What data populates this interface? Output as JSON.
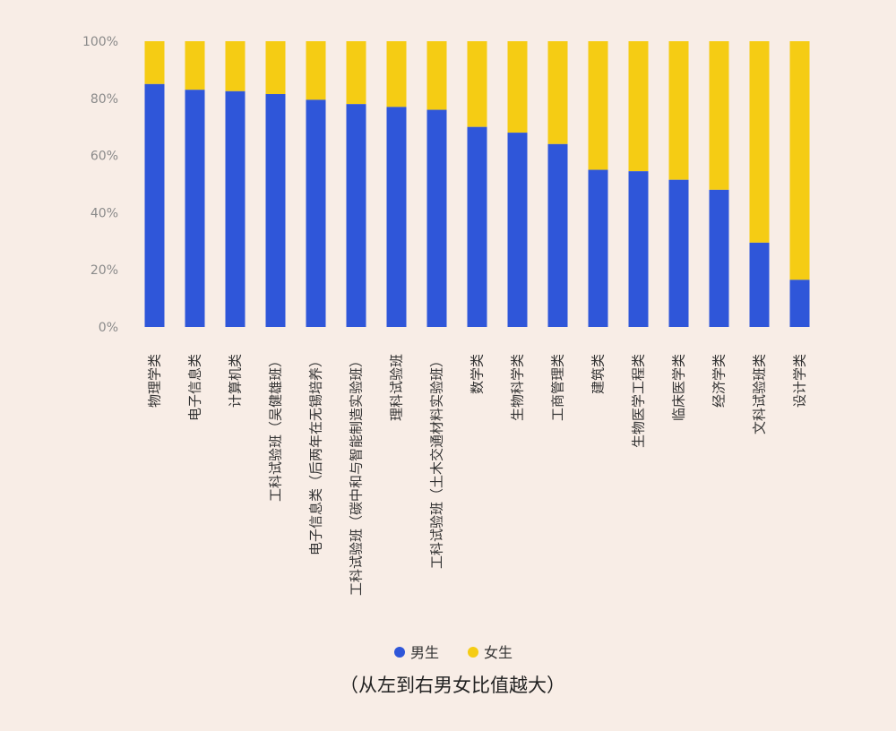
{
  "chart_data": {
    "type": "bar",
    "stacked": true,
    "percent": true,
    "categories": [
      "物理学类",
      "电子信息类",
      "计算机类",
      "工科试验班（吴健雄班）",
      "电子信息类（后两年在无锡培养）",
      "工科试验班（碳中和与智能制造实验班）",
      "理科试验班",
      "工科试验班（土木交通材料实验班）",
      "数学类",
      "生物科学类",
      "工商管理类",
      "建筑类",
      "生物医学工程类",
      "临床医学类",
      "经济学类",
      "文科试验班类",
      "设计学类"
    ],
    "series": [
      {
        "name": "男生",
        "color": "#2f56d9",
        "values": [
          85,
          83,
          82.5,
          81.5,
          79.5,
          78,
          77,
          76,
          70,
          68,
          64,
          55,
          54.5,
          51.5,
          48,
          29.5,
          16.5
        ]
      },
      {
        "name": "女生",
        "color": "#f5cc14",
        "values": [
          15,
          17,
          17.5,
          18.5,
          20.5,
          22,
          23,
          24,
          30,
          32,
          36,
          45,
          45.5,
          48.5,
          52,
          70.5,
          83.5
        ]
      }
    ],
    "yticks": [
      "0%",
      "20%",
      "40%",
      "60%",
      "80%",
      "100%"
    ],
    "ylim": [
      0,
      100
    ],
    "legend_position": "bottom",
    "grid": false,
    "caption": "（从左到右男女比值越大）"
  }
}
